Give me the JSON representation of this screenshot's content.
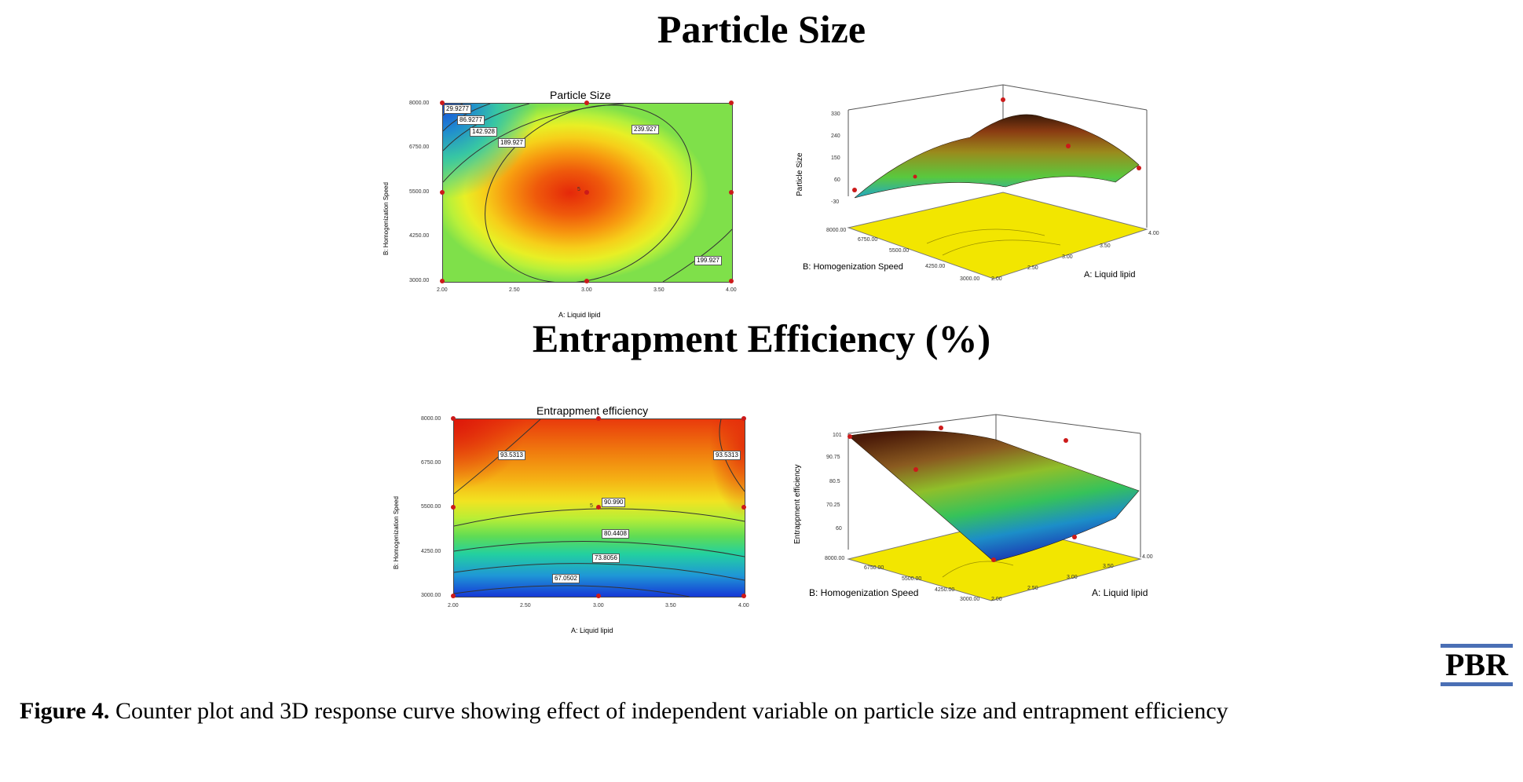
{
  "figure": {
    "section_titles": [
      "Particle Size",
      "Entrapment Efficiency (%)"
    ],
    "logo_text": "PBR",
    "caption_label": "Figure 4.",
    "caption_text": "Counter plot and 3D response curve showing effect of independent variable on particle size and entrapment efficiency"
  },
  "colors": {
    "high": "#d92a0c",
    "mid": "#f3e21f",
    "low": "#1545d6",
    "floor": "#f2e600",
    "point": "#cc1a1a"
  },
  "chart_data": [
    {
      "type": "heatmap",
      "subtype": "contour",
      "title": "Particle Size",
      "xlabel": "A: Liquid lipid",
      "ylabel": "B: Homogenization Speed",
      "x_ticks": [
        "2.00",
        "2.50",
        "3.00",
        "3.50",
        "4.00"
      ],
      "y_ticks": [
        "3000.00",
        "4250.00",
        "5500.00",
        "6750.00",
        "8000.00"
      ],
      "xlim": [
        2,
        4
      ],
      "ylim": [
        3000,
        8000
      ],
      "contour_labels": [
        "29.9277",
        "86.9277",
        "142.928",
        "189.927",
        "239.927",
        "199.927"
      ],
      "design_points": [
        [
          2,
          3000
        ],
        [
          2,
          5500
        ],
        [
          2,
          8000
        ],
        [
          3,
          3000
        ],
        [
          3,
          5500
        ],
        [
          3,
          8000
        ],
        [
          4,
          3000
        ],
        [
          4,
          5500
        ],
        [
          4,
          8000
        ]
      ],
      "center_point_label": "5"
    },
    {
      "type": "surface",
      "zlabel": "Particle Size",
      "xlabel": "A: Liquid lipid",
      "ylabel": "B: Homogenization Speed",
      "z_ticks": [
        "330",
        "240",
        "150",
        "60",
        "-30"
      ],
      "x_ticks": [
        "2.00",
        "2.50",
        "3.00",
        "3.50",
        "4.00"
      ],
      "y_ticks": [
        "3000.00",
        "4250.00",
        "5500.00",
        "6750.00",
        "8000.00"
      ]
    },
    {
      "type": "heatmap",
      "subtype": "contour",
      "title": "Entrappment efficiency",
      "xlabel": "A: Liquid lipid",
      "ylabel": "B: Homogenization Speed",
      "x_ticks": [
        "2.00",
        "2.50",
        "3.00",
        "3.50",
        "4.00"
      ],
      "y_ticks": [
        "3000.00",
        "4250.00",
        "5500.00",
        "6750.00",
        "8000.00"
      ],
      "xlim": [
        2,
        4
      ],
      "ylim": [
        3000,
        8000
      ],
      "contour_labels": [
        "93.5313",
        "93.5313",
        "90.990",
        "80.4408",
        "73.8056",
        "67.0502"
      ],
      "design_points": [
        [
          2,
          3000
        ],
        [
          2,
          5500
        ],
        [
          2,
          8000
        ],
        [
          3,
          3000
        ],
        [
          3,
          5500
        ],
        [
          3,
          8000
        ],
        [
          4,
          3000
        ],
        [
          4,
          5500
        ],
        [
          4,
          8000
        ]
      ],
      "center_point_label": "5"
    },
    {
      "type": "surface",
      "zlabel": "Entrappment efficiency",
      "xlabel": "A: Liquid lipid",
      "ylabel": "B: Homogenization Speed",
      "z_ticks": [
        "101",
        "90.75",
        "80.5",
        "70.25",
        "60"
      ],
      "x_ticks": [
        "2.00",
        "2.50",
        "3.00",
        "3.50",
        "4.00"
      ],
      "y_ticks": [
        "3000.00",
        "4250.00",
        "5500.00",
        "6750.00",
        "8000.00"
      ]
    }
  ]
}
